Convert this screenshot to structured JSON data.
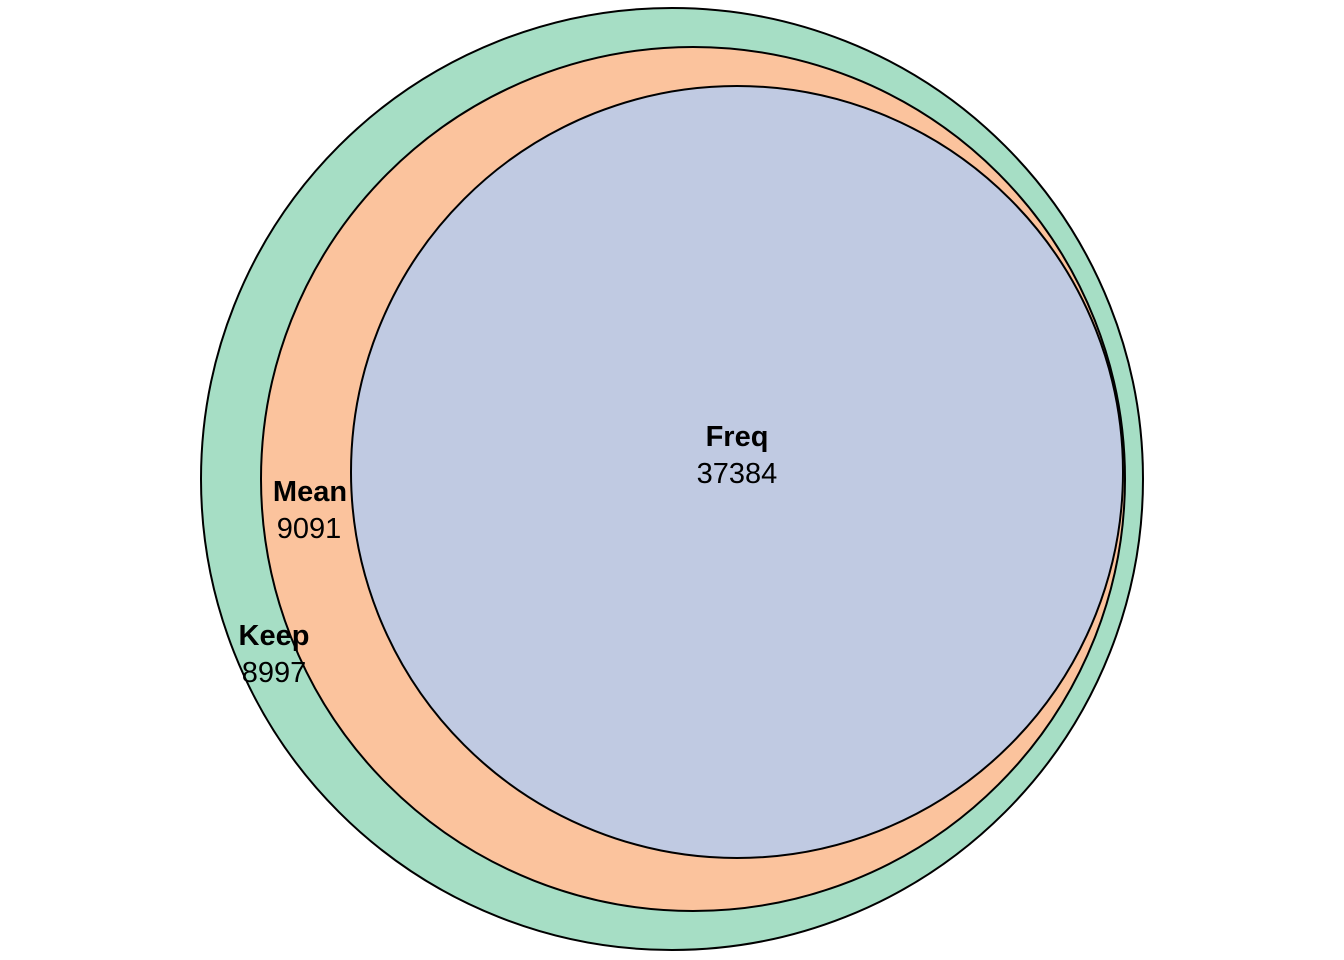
{
  "chart_data": {
    "type": "venn",
    "layout": "nested",
    "sets": [
      {
        "name": "Keep",
        "count": "8997",
        "color": "#a6dec5"
      },
      {
        "name": "Mean",
        "count": "9091",
        "color": "#fbc39d"
      },
      {
        "name": "Freq",
        "count": "37384",
        "color": "#c0cae2"
      }
    ],
    "nesting": "Freq ⊂ Mean ⊂ Keep",
    "outline_color": "#000000",
    "background": "#ffffff"
  }
}
